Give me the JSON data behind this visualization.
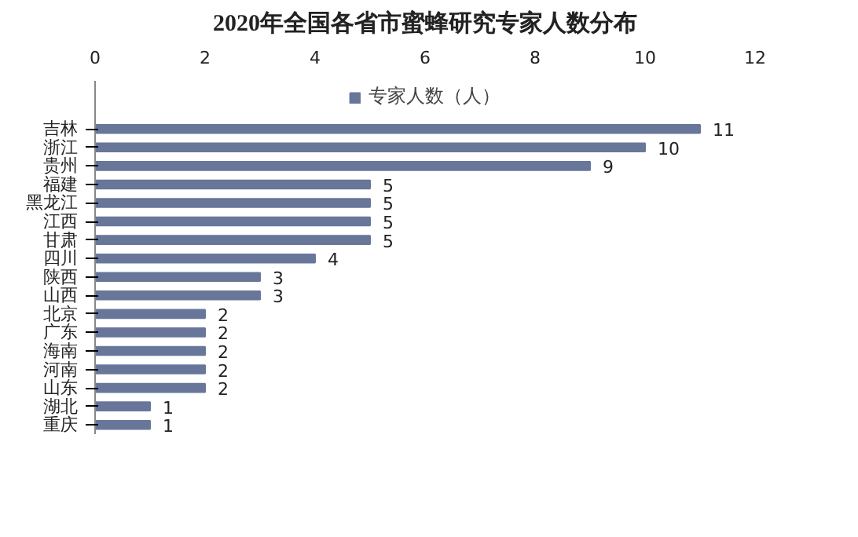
{
  "chart_data": {
    "type": "bar",
    "orientation": "horizontal",
    "title": "2020年全国各省市蜜蜂研究专家人数分布",
    "categories": [
      "吉林",
      "浙江",
      "贵州",
      "福建",
      "黑龙江",
      "江西",
      "甘肃",
      "四川",
      "陕西",
      "山西",
      "北京",
      "广东",
      "海南",
      "河南",
      "山东",
      "湖北",
      "重庆"
    ],
    "series": [
      {
        "name": "专家人数（人）",
        "color": "#68769a",
        "values": [
          11,
          10,
          9,
          5,
          5,
          5,
          5,
          4,
          3,
          3,
          2,
          2,
          2,
          2,
          2,
          1,
          1
        ]
      }
    ],
    "xlim": [
      0,
      12
    ],
    "xticks": [
      0,
      2,
      4,
      6,
      8,
      10,
      12
    ],
    "data_labels": true,
    "grid": false,
    "legend": "top"
  }
}
